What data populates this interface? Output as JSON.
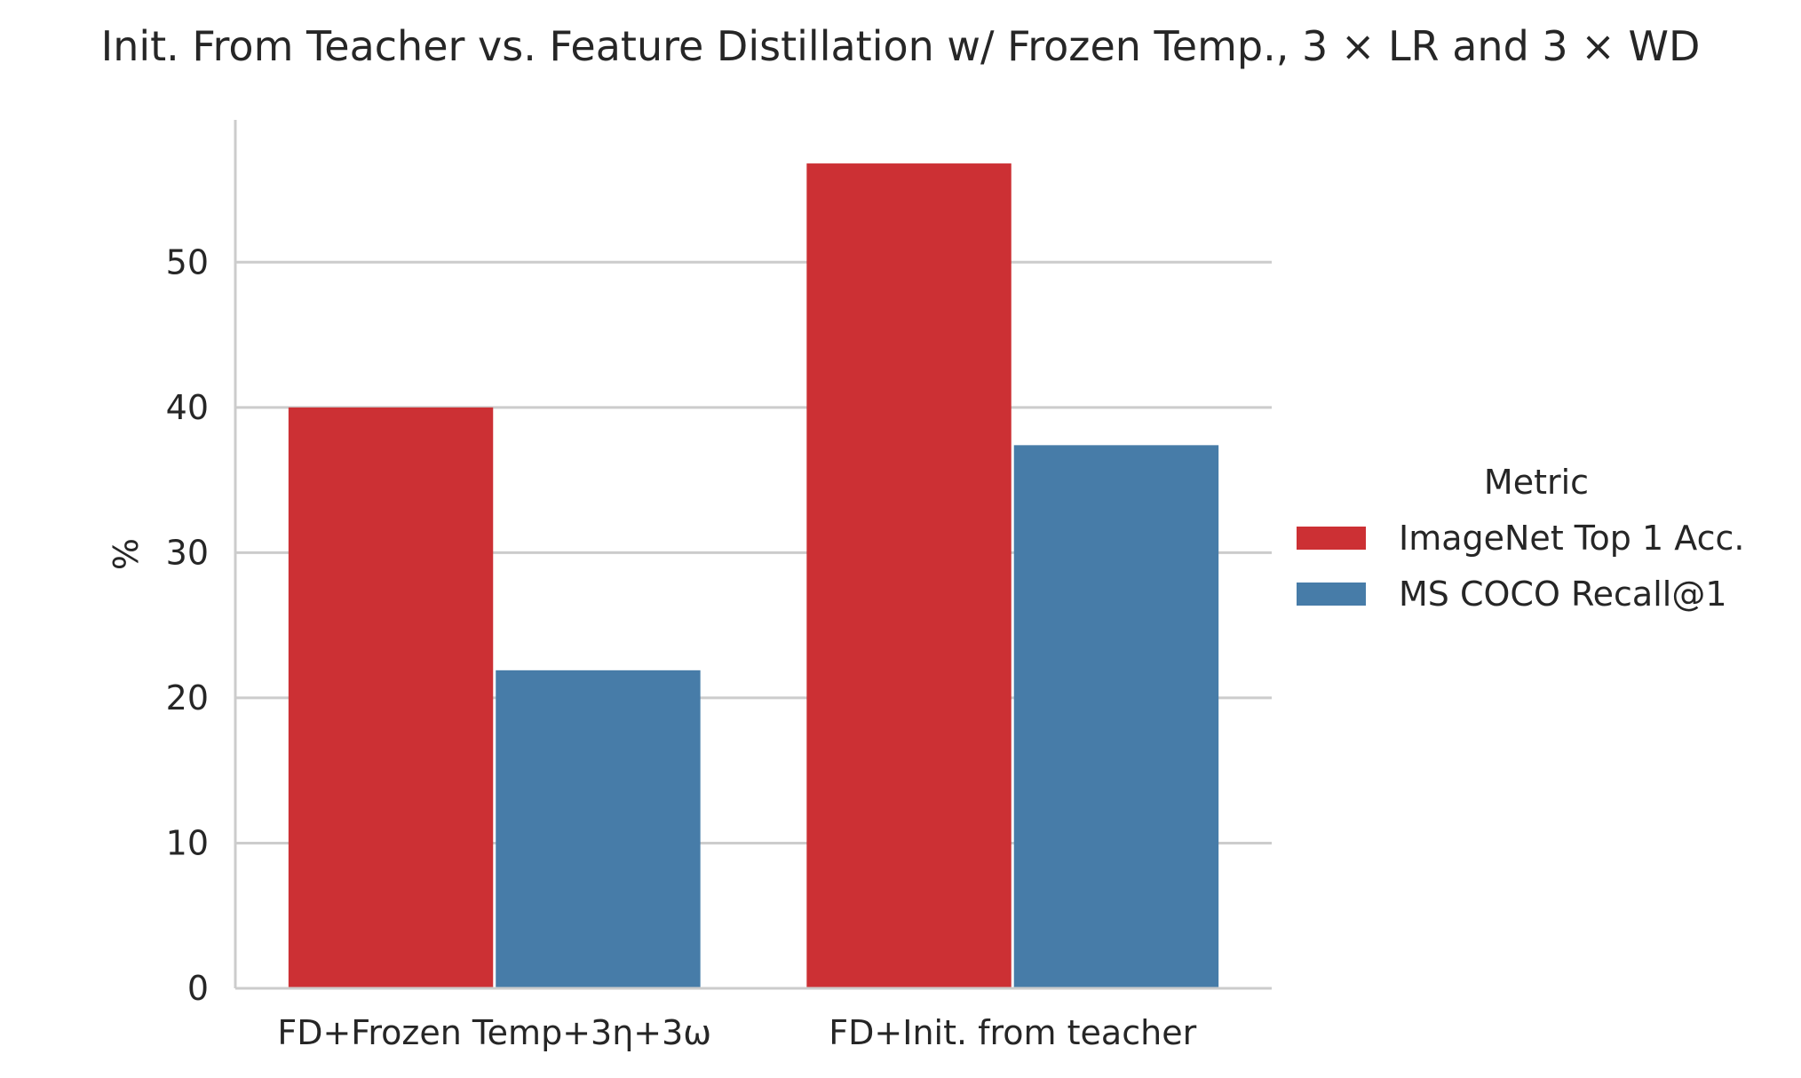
{
  "chart_data": {
    "type": "bar",
    "title": "Init. From Teacher vs. Feature Distillation w/ Frozen Temp., 3 × LR and 3 × WD",
    "xlabel": "",
    "ylabel": "%",
    "categories": [
      "FD+Frozen Temp+3η+3ω",
      "FD+Init. from teacher"
    ],
    "series": [
      {
        "name": "ImageNet Top 1 Acc.",
        "color": "#cc3034",
        "values": [
          40.0,
          56.8
        ]
      },
      {
        "name": "MS COCO Recall@1",
        "color": "#477ca8",
        "values": [
          21.9,
          37.4
        ]
      }
    ],
    "ylim": [
      0,
      59.8
    ],
    "yticks": [
      0,
      10,
      20,
      30,
      40,
      50
    ],
    "grid": true,
    "grid_axis": "y",
    "legend": {
      "title": "Metric",
      "placement": "right"
    }
  }
}
